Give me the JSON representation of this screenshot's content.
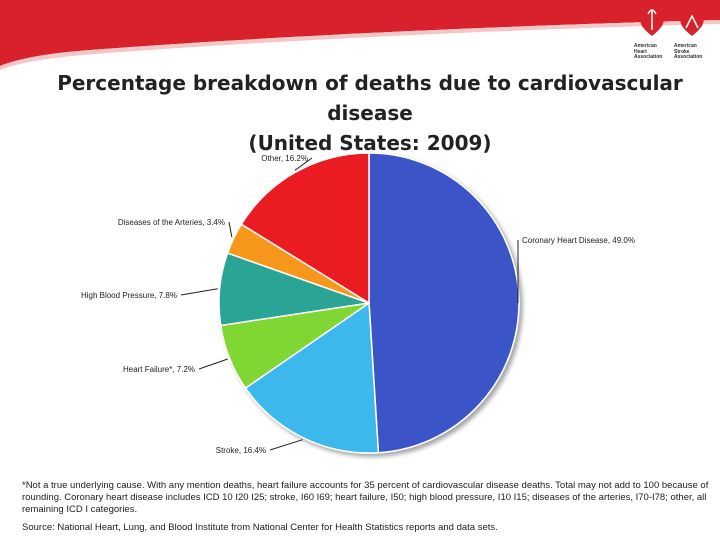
{
  "logo": {
    "left_text": [
      "American",
      "Heart",
      "Association"
    ],
    "right_text": [
      "American",
      "Stroke",
      "Association"
    ],
    "icon": "heart-torch-icon",
    "accent_color": "#d8212b"
  },
  "title_lines": [
    "Percentage breakdown of deaths due to cardiovascular disease",
    "(United States: 2009)"
  ],
  "chart_data": {
    "type": "pie",
    "title": "Percentage breakdown of deaths due to cardiovascular disease (United States: 2009)",
    "slices": [
      {
        "label": "Coronary Heart Disease, 49.0%",
        "name": "Coronary Heart Disease",
        "value": 49.0,
        "color": "#3a55c8"
      },
      {
        "label": "Stroke, 16.4%",
        "name": "Stroke",
        "value": 16.4,
        "color": "#3db8ec"
      },
      {
        "label": "Heart Failure*, 7.2%",
        "name": "Heart Failure*",
        "value": 7.2,
        "color": "#80d632"
      },
      {
        "label": "High Blood Pressure, 7.8%",
        "name": "High Blood Pressure",
        "value": 7.8,
        "color": "#2aa595"
      },
      {
        "label": "Diseases of the Arteries, 3.4%",
        "name": "Diseases of the Arteries",
        "value": 3.4,
        "color": "#f7981d"
      },
      {
        "label": "Other, 16.2%",
        "name": "Other",
        "value": 16.2,
        "color": "#ea1d23"
      }
    ]
  },
  "footnote": "*Not a true underlying cause. With any mention deaths, heart failure accounts for 35 percent of cardiovascular disease deaths. Total may not add to 100 because of rounding. Coronary heart disease includes ICD 10 I20 I25; stroke, I60 I69; heart failure, I50; high blood pressure, I10 I15; diseases of the arteries, I70-I78; other, all remaining ICD I categories.",
  "source": "Source: National Heart, Lung, and Blood Institute from National Center for Health Statistics reports and data sets."
}
